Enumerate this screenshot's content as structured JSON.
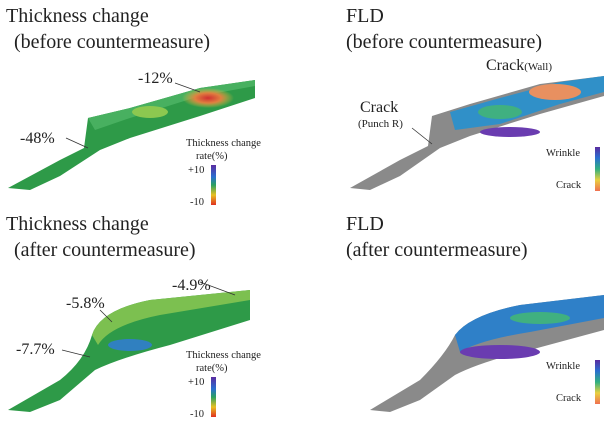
{
  "panels": [
    {
      "title": [
        "Thickness change",
        "(before countermeasure)"
      ],
      "annotations": [
        "-12%",
        "-48%"
      ],
      "legend": {
        "title": [
          "Thickness change",
          "rate(%)"
        ],
        "labels": [
          "+10",
          "-10"
        ]
      }
    },
    {
      "title": [
        "FLD",
        "(before countermeasure)"
      ],
      "annotations": [
        {
          "main": "Crack",
          "sub": "(Wall)"
        },
        {
          "main": "Crack",
          "sub": "(Punch R)"
        }
      ],
      "legend": {
        "labels": [
          "Wrinkle",
          "Crack"
        ]
      }
    },
    {
      "title": [
        "Thickness change",
        "(after countermeasure)"
      ],
      "annotations": [
        "-4.9%",
        "-5.8%",
        "-7.7%"
      ],
      "legend": {
        "title": [
          "Thickness change",
          "rate(%)"
        ],
        "labels": [
          "+10",
          "-10"
        ]
      }
    },
    {
      "title": [
        "FLD",
        "(after countermeasure)"
      ],
      "legend": {
        "labels": [
          "Wrinkle",
          "Crack"
        ]
      }
    }
  ]
}
